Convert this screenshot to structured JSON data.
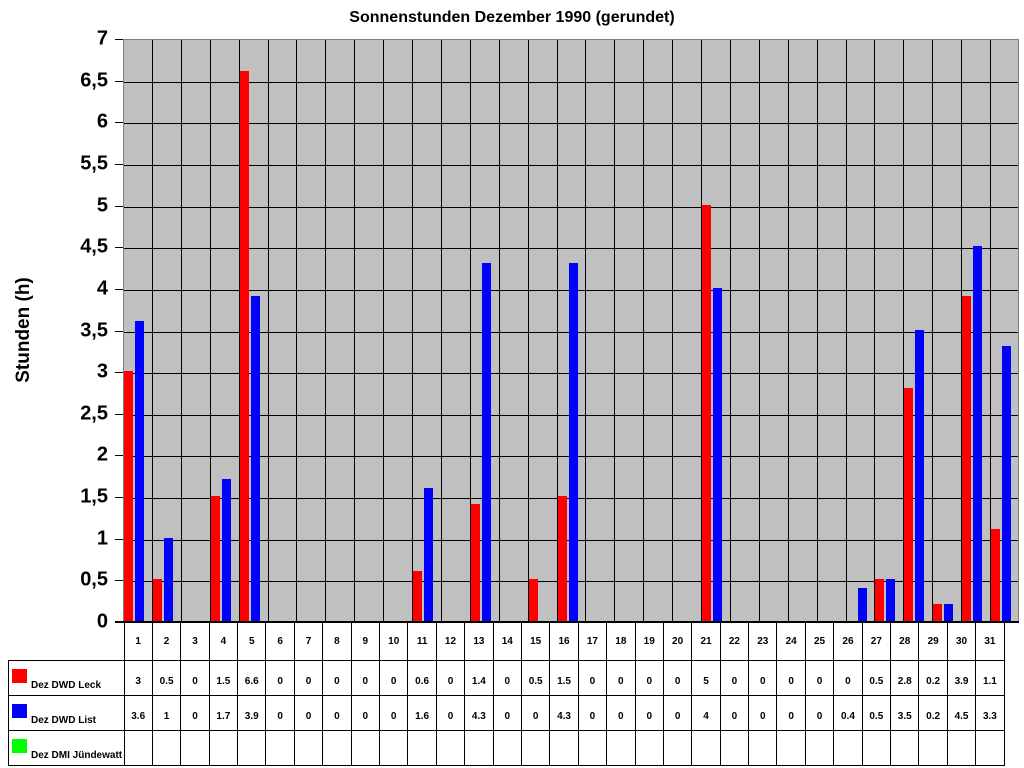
{
  "chart_data": {
    "type": "bar",
    "title": "Sonnenstunden Dezember 1990 (gerundet)",
    "xlabel": "",
    "ylabel": "Stunden (h)",
    "ylim": [
      0,
      7
    ],
    "yticks": [
      "0",
      "0,5",
      "1",
      "1,5",
      "2",
      "2,5",
      "3",
      "3,5",
      "4",
      "4,5",
      "5",
      "5,5",
      "6",
      "6,5",
      "7"
    ],
    "grid": true,
    "legend_position": "data-table-left",
    "categories": [
      "1",
      "2",
      "3",
      "4",
      "5",
      "6",
      "7",
      "8",
      "9",
      "10",
      "11",
      "12",
      "13",
      "14",
      "15",
      "16",
      "17",
      "18",
      "19",
      "20",
      "21",
      "22",
      "23",
      "24",
      "25",
      "26",
      "27",
      "28",
      "29",
      "30",
      "31"
    ],
    "series": [
      {
        "name": "Dez DWD Leck",
        "color": "#ff0000",
        "values": [
          3,
          0.5,
          0,
          1.5,
          6.6,
          0,
          0,
          0,
          0,
          0,
          0.6,
          0,
          1.4,
          0,
          0.5,
          1.5,
          0,
          0,
          0,
          0,
          5,
          0,
          0,
          0,
          0,
          0,
          0.5,
          2.8,
          0.2,
          3.9,
          1.1
        ]
      },
      {
        "name": "Dez DWD List",
        "color": "#0000ff",
        "values": [
          3.6,
          1,
          0,
          1.7,
          3.9,
          0,
          0,
          0,
          0,
          0,
          1.6,
          0,
          4.3,
          0,
          0,
          4.3,
          0,
          0,
          0,
          0,
          4,
          0,
          0,
          0,
          0,
          0.4,
          0.5,
          3.5,
          0.2,
          4.5,
          3.3
        ]
      },
      {
        "name": "Dez DMI Jündewatt",
        "color": "#00ff00",
        "values": [
          null,
          null,
          null,
          null,
          null,
          null,
          null,
          null,
          null,
          null,
          null,
          null,
          null,
          null,
          null,
          null,
          null,
          null,
          null,
          null,
          null,
          null,
          null,
          null,
          null,
          null,
          null,
          null,
          null,
          null,
          null
        ]
      }
    ],
    "table_values": {
      "Dez DWD Leck": [
        "3",
        "0.5",
        "0",
        "1.5",
        "6.6",
        "0",
        "0",
        "0",
        "0",
        "0",
        "0.6",
        "0",
        "1.4",
        "0",
        "0.5",
        "1.5",
        "0",
        "0",
        "0",
        "0",
        "5",
        "0",
        "0",
        "0",
        "0",
        "0",
        "0.5",
        "2.8",
        "0.2",
        "3.9",
        "1.1"
      ],
      "Dez DWD List": [
        "3.6",
        "1",
        "0",
        "1.7",
        "3.9",
        "0",
        "0",
        "0",
        "0",
        "0",
        "1.6",
        "0",
        "4.3",
        "0",
        "0",
        "4.3",
        "0",
        "0",
        "0",
        "0",
        "4",
        "0",
        "0",
        "0",
        "0",
        "0.4",
        "0.5",
        "3.5",
        "0.2",
        "4.5",
        "3.3"
      ],
      "Dez DMI Jündewatt": [
        "",
        "",
        "",
        "",
        "",
        "",
        "",
        "",
        "",
        "",
        "",
        "",
        "",
        "",
        "",
        "",
        "",
        "",
        "",
        "",
        "",
        "",
        "",
        "",
        "",
        "",
        "",
        "",
        "",
        "",
        ""
      ]
    }
  },
  "colors": {
    "plot_bg": "#c0c0c0",
    "gridline": "#000000",
    "series_leck": "#ff0000",
    "series_list": "#0000ff",
    "series_juendewatt": "#00ff00"
  }
}
